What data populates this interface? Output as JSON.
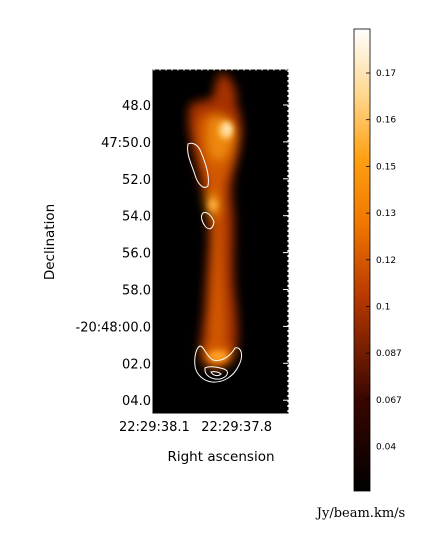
{
  "chart_data": {
    "type": "heatmap",
    "title": "",
    "xlabel": "Right ascension",
    "ylabel": "Declination",
    "x_ticks": [
      "22:29:38.1",
      "22:29:37.8"
    ],
    "y_ticks": [
      "48.0",
      "47:50.0",
      "52.0",
      "54.0",
      "56.0",
      "58.0",
      "-20:48:00.0",
      "02.0",
      "04.0"
    ],
    "colorbar": {
      "label": "Jy/beam.km/s",
      "colormap": "afmhot",
      "ticks": [
        "0.04",
        "0.067",
        "0.087",
        "0.1",
        "0.12",
        "0.13",
        "0.15",
        "0.16",
        "0.17"
      ]
    },
    "contours_color": "#ffffff",
    "background_color": "#000000"
  }
}
